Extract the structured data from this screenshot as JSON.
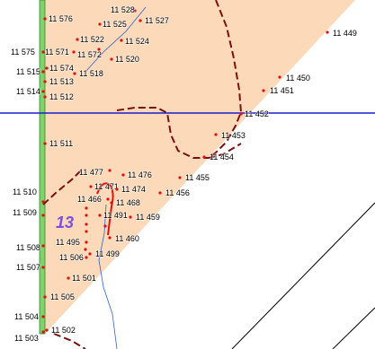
{
  "map": {
    "area_label": "13",
    "points": [
      "11 576",
      "11 528",
      "11 525",
      "11 527",
      "11 522",
      "11 524",
      "11 575",
      "11 571",
      "11 572",
      "11 520",
      "11 515",
      "11 574",
      "11 518",
      "11 513",
      "11 514",
      "11 512",
      "11 449",
      "11 450",
      "11 451",
      "11 452",
      "11 453",
      "11 454",
      "11 511",
      "11 455",
      "11 477",
      "11 476",
      "11 471",
      "11 474",
      "11 456",
      "11 466",
      "11 468",
      "11 510",
      "11 509",
      "11 491",
      "11 459",
      "11 460",
      "11 495",
      "11 508",
      "11 506",
      "11 499",
      "11 507",
      "11 501",
      "11 505",
      "11 504",
      "11 502",
      "11 503"
    ]
  }
}
